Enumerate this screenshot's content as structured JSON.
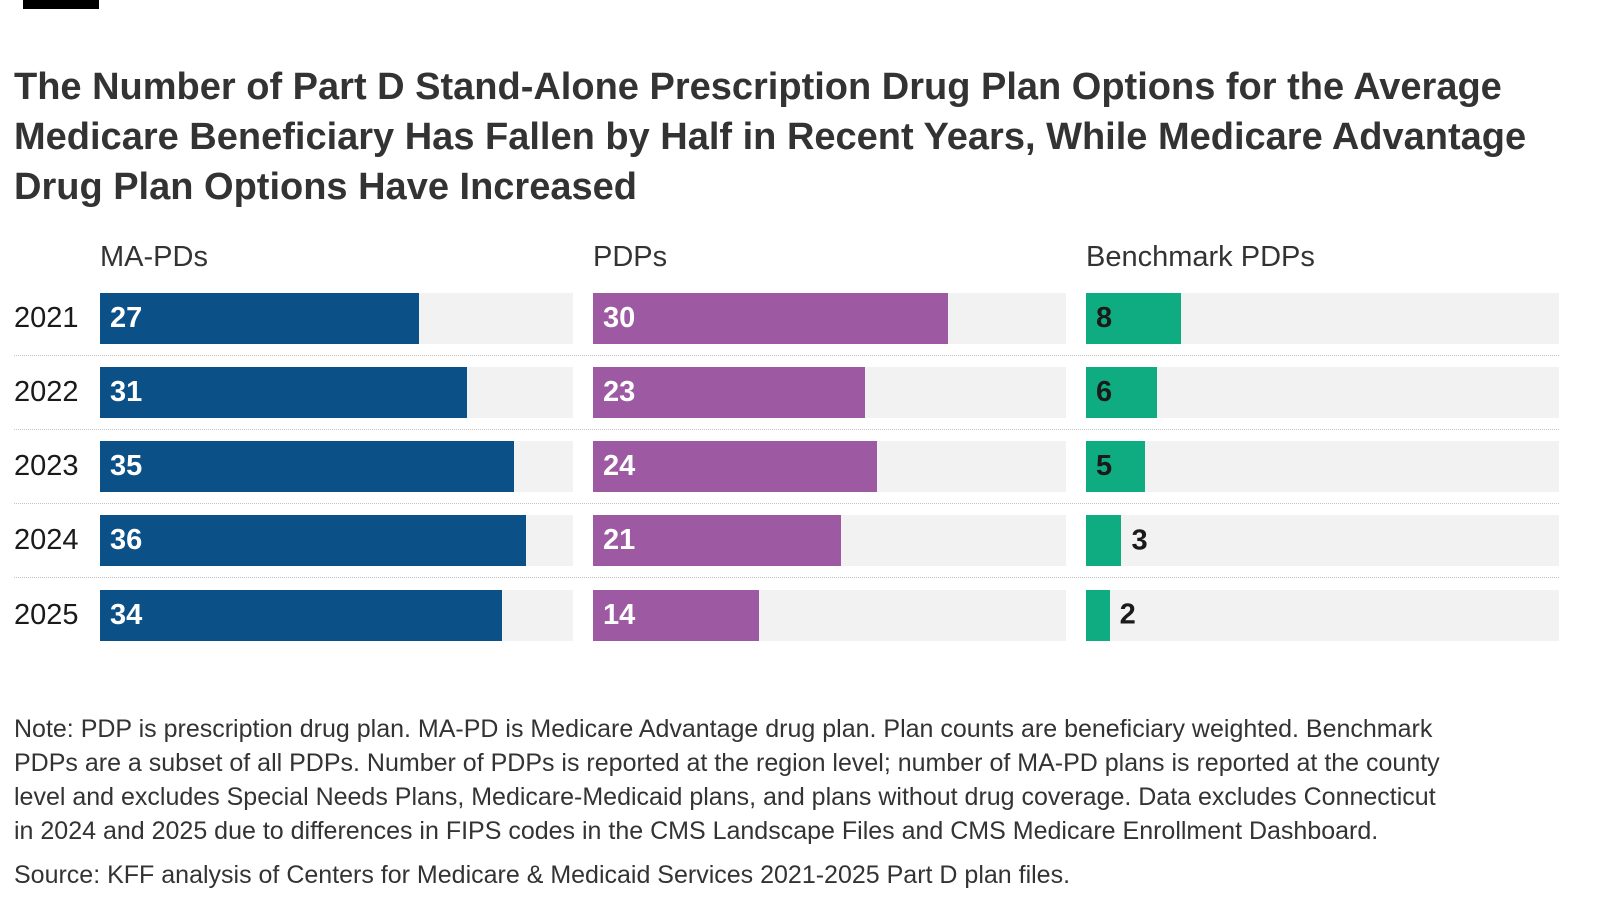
{
  "title": "The Number of Part D Stand-Alone Prescription Drug Plan Options for the Average Medicare Beneficiary Has Fallen by Half in Recent Years, While Medicare Advantage Drug Plan Options Have Increased",
  "note": "Note: PDP is prescription drug plan. MA-PD is Medicare Advantage drug plan. Plan counts are beneficiary weighted. Benchmark PDPs are a subset of all PDPs. Number of PDPs is reported at the region level; number of MA-PD plans is reported at the county level and excludes Special Needs Plans, Medicare-Medicaid plans, and plans without drug coverage. Data excludes Connecticut in 2024 and 2025 due to differences in FIPS codes in the CMS Landscape Files and CMS Medicare Enrollment Dashboard.",
  "source": "Source: KFF analysis of Centers for Medicare & Medicaid Services 2021-2025 Part D plan files.",
  "colors": {
    "ma_pd_blue": "#0b5087",
    "pdp_purple": "#9e59a3",
    "benchmark_green": "#0fab81",
    "track_gray": "#f2f2f2",
    "text": "#333333"
  },
  "chart_data": {
    "type": "bar",
    "orientation": "horizontal",
    "title": "The Number of Part D Stand-Alone Prescription Drug Plan Options for the Average Medicare Beneficiary Has Fallen by Half in Recent Years, While Medicare Advantage Drug Plan Options Have Increased",
    "categories": [
      "2021",
      "2022",
      "2023",
      "2024",
      "2025"
    ],
    "series": [
      {
        "name": "MA-PDs",
        "color": "#0b5087",
        "label_color": "#ffffff",
        "values": [
          27,
          31,
          35,
          36,
          34
        ]
      },
      {
        "name": "PDPs",
        "color": "#9e59a3",
        "label_color": "#ffffff",
        "values": [
          30,
          23,
          24,
          21,
          14
        ]
      },
      {
        "name": "Benchmark PDPs",
        "color": "#0fab81",
        "label_color": "#1a1a1a",
        "values": [
          8,
          6,
          5,
          3,
          2
        ]
      }
    ],
    "xlim": [
      0,
      40
    ],
    "grid": false,
    "value_labels": "inside-start, outside when bar too narrow",
    "legend_position": "column headers above each panel",
    "xlabel": "",
    "ylabel": ""
  }
}
